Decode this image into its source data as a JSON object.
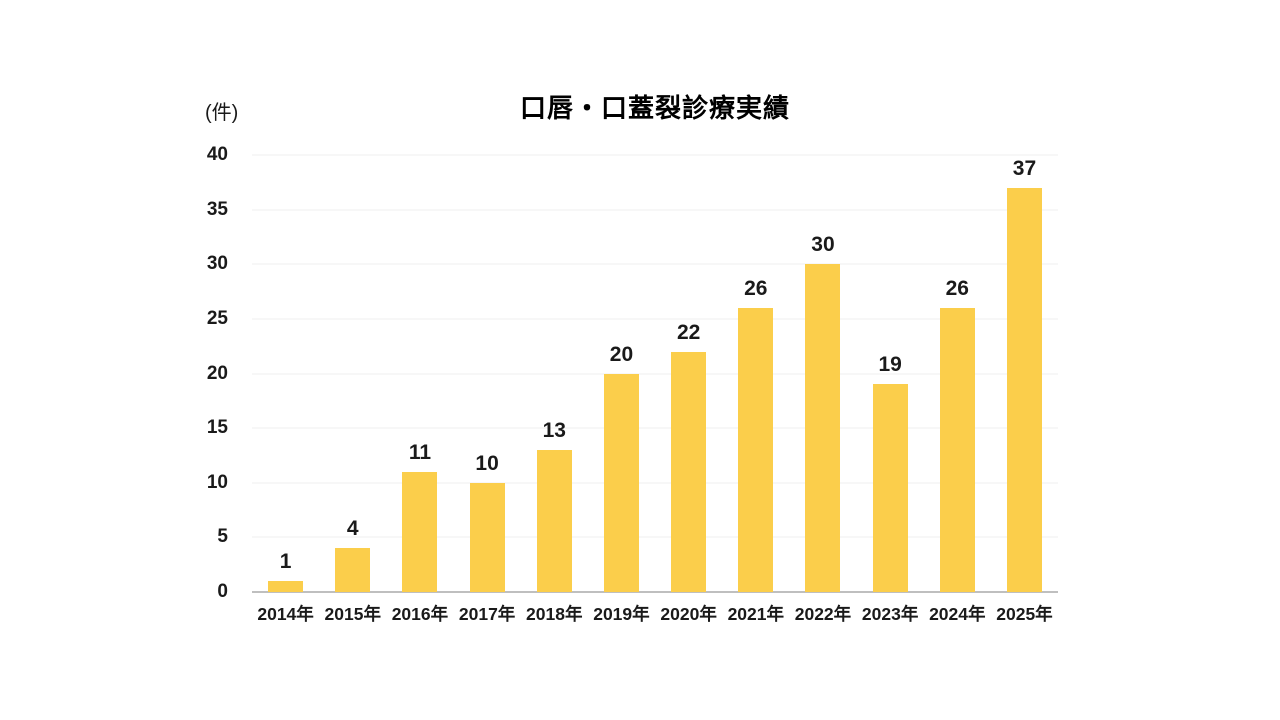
{
  "header": {
    "title": "口唇・口蓋裂診療実績",
    "unit_label": "(件)"
  },
  "chart_data": {
    "type": "bar",
    "title": "口唇・口蓋裂診療実績",
    "unit_label": "(件)",
    "categories": [
      "2014年",
      "2015年",
      "2016年",
      "2017年",
      "2018年",
      "2019年",
      "2020年",
      "2021年",
      "2022年",
      "2023年",
      "2024年",
      "2025年"
    ],
    "values": [
      1,
      4,
      11,
      10,
      13,
      20,
      22,
      26,
      30,
      19,
      26,
      37
    ],
    "xlabel": "",
    "ylabel": "(件)",
    "ylim": [
      0,
      40
    ],
    "yticks": [
      0,
      5,
      10,
      15,
      20,
      25,
      30,
      35,
      40
    ],
    "grid": true,
    "legend": "none",
    "colors": {
      "bar": "#FBCE4B",
      "axis_line": "#BFBFBF",
      "gridline": "#EFEFEF",
      "text": "#1A1A1A",
      "background": "#FFFFFF"
    }
  }
}
